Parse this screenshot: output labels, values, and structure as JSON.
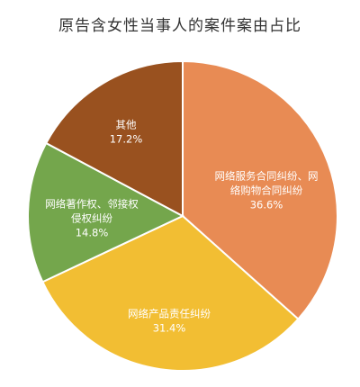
{
  "chart_data": {
    "type": "pie",
    "title": "原告含女性当事人的案件案由占比",
    "slices": [
      {
        "label_lines": [
          "网络服务合同纠纷、网",
          "络购物合同纠纷"
        ],
        "value": 36.6,
        "value_text": "36.6%",
        "color": "#E88B54"
      },
      {
        "label_lines": [
          "网络产品责任纠纷"
        ],
        "value": 31.4,
        "value_text": "31.4%",
        "color": "#F2BE33"
      },
      {
        "label_lines": [
          "网络著作权、邻接权",
          "侵权纠纷"
        ],
        "value": 14.8,
        "value_text": "14.8%",
        "color": "#74A64C"
      },
      {
        "label_lines": [
          "其他"
        ],
        "value": 17.2,
        "value_text": "17.2%",
        "color": "#99511F"
      }
    ]
  }
}
